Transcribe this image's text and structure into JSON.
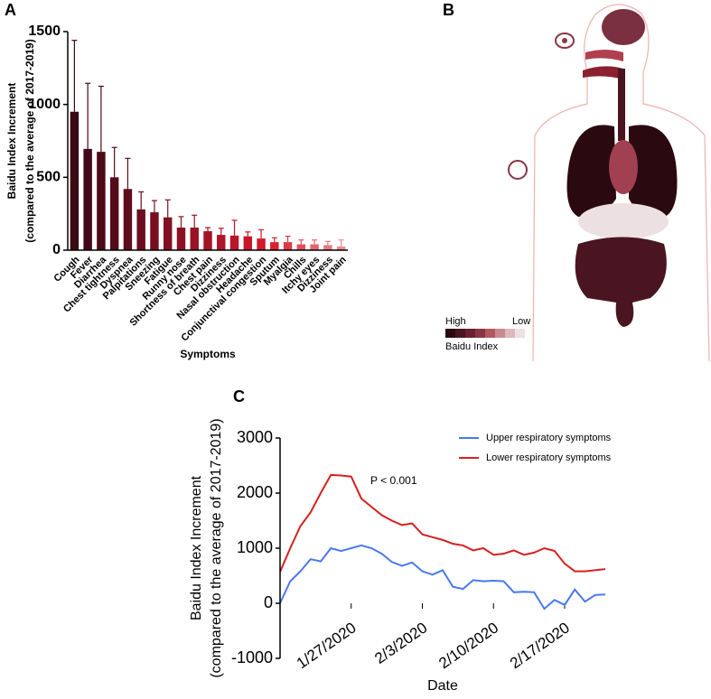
{
  "chart_data": [
    {
      "type": "bar",
      "panel_label": "A",
      "ylabel": [
        "Baidu Index Increment",
        "(compared to the average of 2017-2019)"
      ],
      "xlabel": "Symptoms",
      "categories": [
        "Cough",
        "Fever",
        "Diarrhea",
        "Chest tightness",
        "Dyspnea",
        "Palpitations",
        "Sneezing",
        "Fatigue",
        "Runny nose",
        "Shortness of breath",
        "Chest pain",
        "Dizziness",
        "Nasal obstruction",
        "Headache",
        "Conjunctival congestion",
        "Sputum",
        "Myalgia",
        "Chills",
        "Itchy eyes",
        "Dizziness",
        "Joint pain"
      ],
      "values": [
        950,
        695,
        675,
        500,
        420,
        280,
        260,
        225,
        155,
        155,
        130,
        105,
        100,
        95,
        80,
        55,
        55,
        40,
        40,
        35,
        25
      ],
      "errors": [
        490,
        450,
        450,
        205,
        210,
        120,
        80,
        120,
        75,
        85,
        25,
        45,
        105,
        30,
        60,
        30,
        40,
        30,
        30,
        25,
        45
      ],
      "colors": [
        "#3a0a12",
        "#43091a",
        "#4c0a18",
        "#540b19",
        "#5f0c1c",
        "#6b0d1e",
        "#760e20",
        "#820f22",
        "#8e1023",
        "#9a1225",
        "#a51326",
        "#b01428",
        "#bb1529",
        "#c6172b",
        "#d0192d",
        "#d8202f",
        "#dc3a45",
        "#e0505a",
        "#e4646e",
        "#e87880",
        "#ec8c92"
      ],
      "ylim": [
        0,
        1500
      ],
      "yticks": [
        0,
        500,
        1000,
        1500
      ]
    },
    {
      "type": "line",
      "panel_label": "C",
      "ylabel": [
        "Baidu Index Increment",
        "(compared to the average of 2017-2019)"
      ],
      "xlabel": "Date",
      "annotation": "P < 0.001",
      "categories": [
        null,
        null,
        null,
        null,
        null,
        null,
        null,
        "1/27/2020",
        null,
        null,
        null,
        null,
        null,
        null,
        "2/3/2020",
        null,
        null,
        null,
        null,
        null,
        null,
        "2/10/2020",
        null,
        null,
        null,
        null,
        null,
        null,
        "2/17/2020",
        null,
        null,
        null,
        null
      ],
      "series": [
        {
          "name": "Upper respiratory symptoms",
          "color": "#4a78f0",
          "values": [
            0,
            400,
            580,
            800,
            760,
            1000,
            950,
            1000,
            1050,
            1000,
            900,
            750,
            680,
            740,
            580,
            520,
            600,
            300,
            260,
            420,
            400,
            410,
            400,
            200,
            210,
            200,
            -100,
            60,
            -30,
            250,
            30,
            150,
            160
          ]
        },
        {
          "name": "Lower respiratory symptoms",
          "color": "#d62020",
          "values": [
            570,
            1000,
            1400,
            1650,
            2000,
            2330,
            2320,
            2300,
            1900,
            1750,
            1600,
            1500,
            1420,
            1450,
            1250,
            1200,
            1150,
            1080,
            1050,
            960,
            1000,
            880,
            900,
            960,
            880,
            920,
            1000,
            950,
            720,
            580,
            580,
            600,
            620
          ]
        }
      ],
      "ylim": [
        -1000,
        3000
      ],
      "yticks": [
        -1000,
        0,
        1000,
        2000,
        3000
      ]
    }
  ],
  "panel_b": {
    "panel_label": "B",
    "legend_high": "High",
    "legend_low": "Low",
    "legend_title": "Baidu Index",
    "legend_colors": [
      "#2a0a10",
      "#4a1520",
      "#6a2030",
      "#8a3545",
      "#b05a60",
      "#c88a90",
      "#dcb8bc",
      "#ece0e2"
    ]
  }
}
